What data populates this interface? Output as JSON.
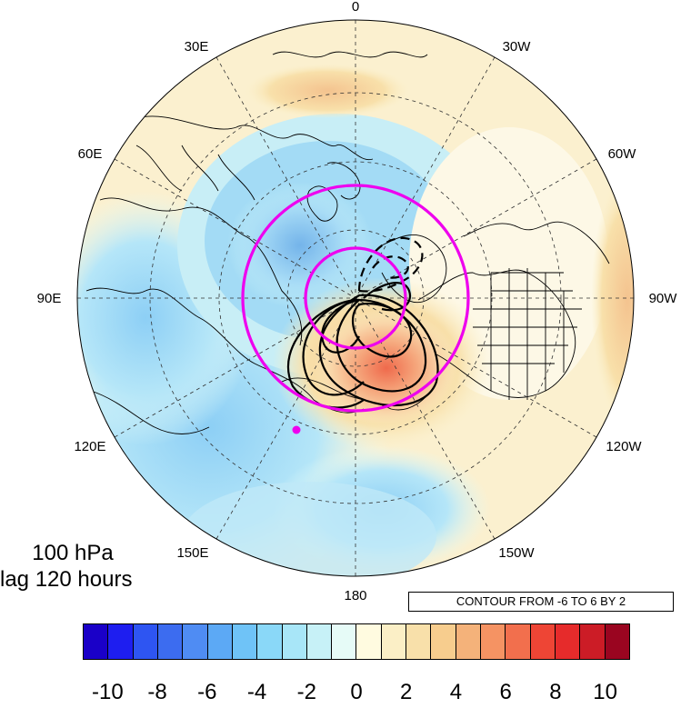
{
  "panel": {
    "level_label": "100 hPa",
    "lag_label": "lag 120 hours"
  },
  "contour_info": "CONTOUR FROM -6 TO 6 BY 2",
  "longitude_labels": {
    "top": "0",
    "upper_left": "30E",
    "upper_right": "30W",
    "left_upper": "60E",
    "right_upper": "60W",
    "left": "90E",
    "right": "90W",
    "left_lower": "120E",
    "right_lower": "120W",
    "lower_left": "150E",
    "lower_right": "150W",
    "bottom": "180"
  },
  "colorbar": {
    "colors": [
      "#1a00c8",
      "#1e1ef0",
      "#2e55f2",
      "#3c6cf0",
      "#4f8cf3",
      "#5ca9f5",
      "#6fc3f7",
      "#8ad8f8",
      "#a8e6f8",
      "#c7f1f7",
      "#e6fbf7",
      "#fffbe0",
      "#fbefc6",
      "#f8e0aa",
      "#f7cd8e",
      "#f4b27a",
      "#f59363",
      "#f26f4d",
      "#ee4535",
      "#e62b2b",
      "#cc1c26",
      "#9a0520"
    ],
    "tick_labels": [
      "-10",
      "-8",
      "-6",
      "-4",
      "-2",
      "0",
      "2",
      "4",
      "6",
      "8",
      "10"
    ]
  },
  "legend_colors": {
    "map_outline": "#000000",
    "contours": "#000000",
    "rings": "#ee00ee",
    "marker": "#ee00ee"
  }
}
